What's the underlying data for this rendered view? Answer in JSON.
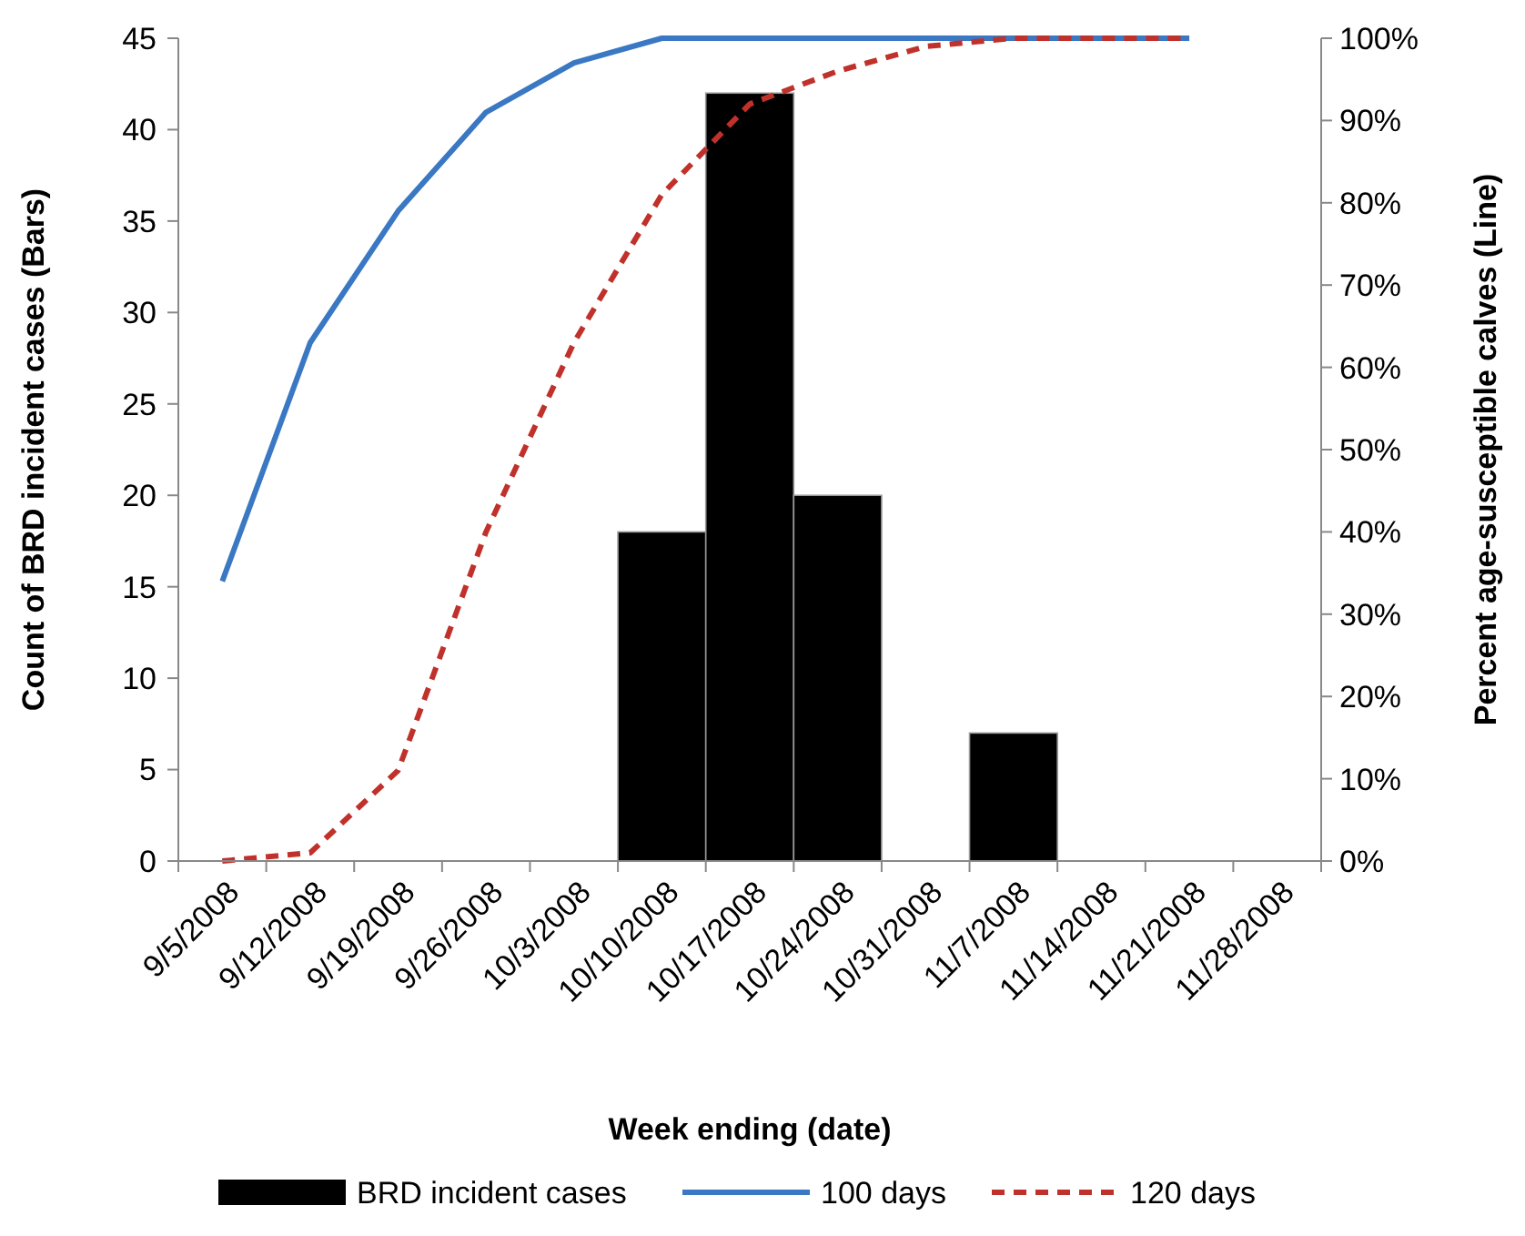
{
  "chart_data": {
    "type": "bar",
    "xlabel": "Week ending (date)",
    "ylabel": "Count of BRD incident cases (Bars)",
    "y2label": "Percent  age-susceptible calves (Line)",
    "categories": [
      "9/5/2008",
      "9/12/2008",
      "9/19/2008",
      "9/26/2008",
      "10/3/2008",
      "10/10/2008",
      "10/17/2008",
      "10/24/2008",
      "10/31/2008",
      "11/7/2008",
      "11/14/2008",
      "11/21/2008",
      "11/28/2008"
    ],
    "series": [
      {
        "name": "BRD incident cases",
        "color": "#000000",
        "values": [
          null,
          null,
          null,
          null,
          null,
          18,
          42,
          20,
          null,
          7,
          null,
          null,
          null
        ]
      },
      {
        "name": "100 days",
        "type": "line",
        "axis": "y2",
        "color": "#3a78c3",
        "line_style": "solid",
        "values": [
          34,
          63,
          79,
          91,
          97,
          100,
          100,
          100,
          100,
          100,
          100,
          100,
          null
        ]
      },
      {
        "name": "120 days",
        "type": "line",
        "axis": "y2",
        "color": "#c0312b",
        "line_style": "dashed",
        "values": [
          0,
          1,
          11,
          40,
          63,
          81,
          92,
          96,
          99,
          100,
          100,
          100,
          null
        ]
      }
    ],
    "ylim": [
      0,
      45
    ],
    "yticks": [
      0,
      5,
      10,
      15,
      20,
      25,
      30,
      35,
      40,
      45
    ],
    "y2lim": [
      0,
      100
    ],
    "y2ticks": [
      {
        "value": 0,
        "label": "0%"
      },
      {
        "value": 10,
        "label": "10%"
      },
      {
        "value": 20,
        "label": "20%"
      },
      {
        "value": 30,
        "label": "30%"
      },
      {
        "value": 40,
        "label": "40%"
      },
      {
        "value": 50,
        "label": "50%"
      },
      {
        "value": 60,
        "label": "60%"
      },
      {
        "value": 70,
        "label": "70%"
      },
      {
        "value": 80,
        "label": "80%"
      },
      {
        "value": 90,
        "label": "90%"
      },
      {
        "value": 100,
        "label": "100%"
      }
    ],
    "grid": false,
    "legend": "bottom",
    "marker": "none"
  }
}
